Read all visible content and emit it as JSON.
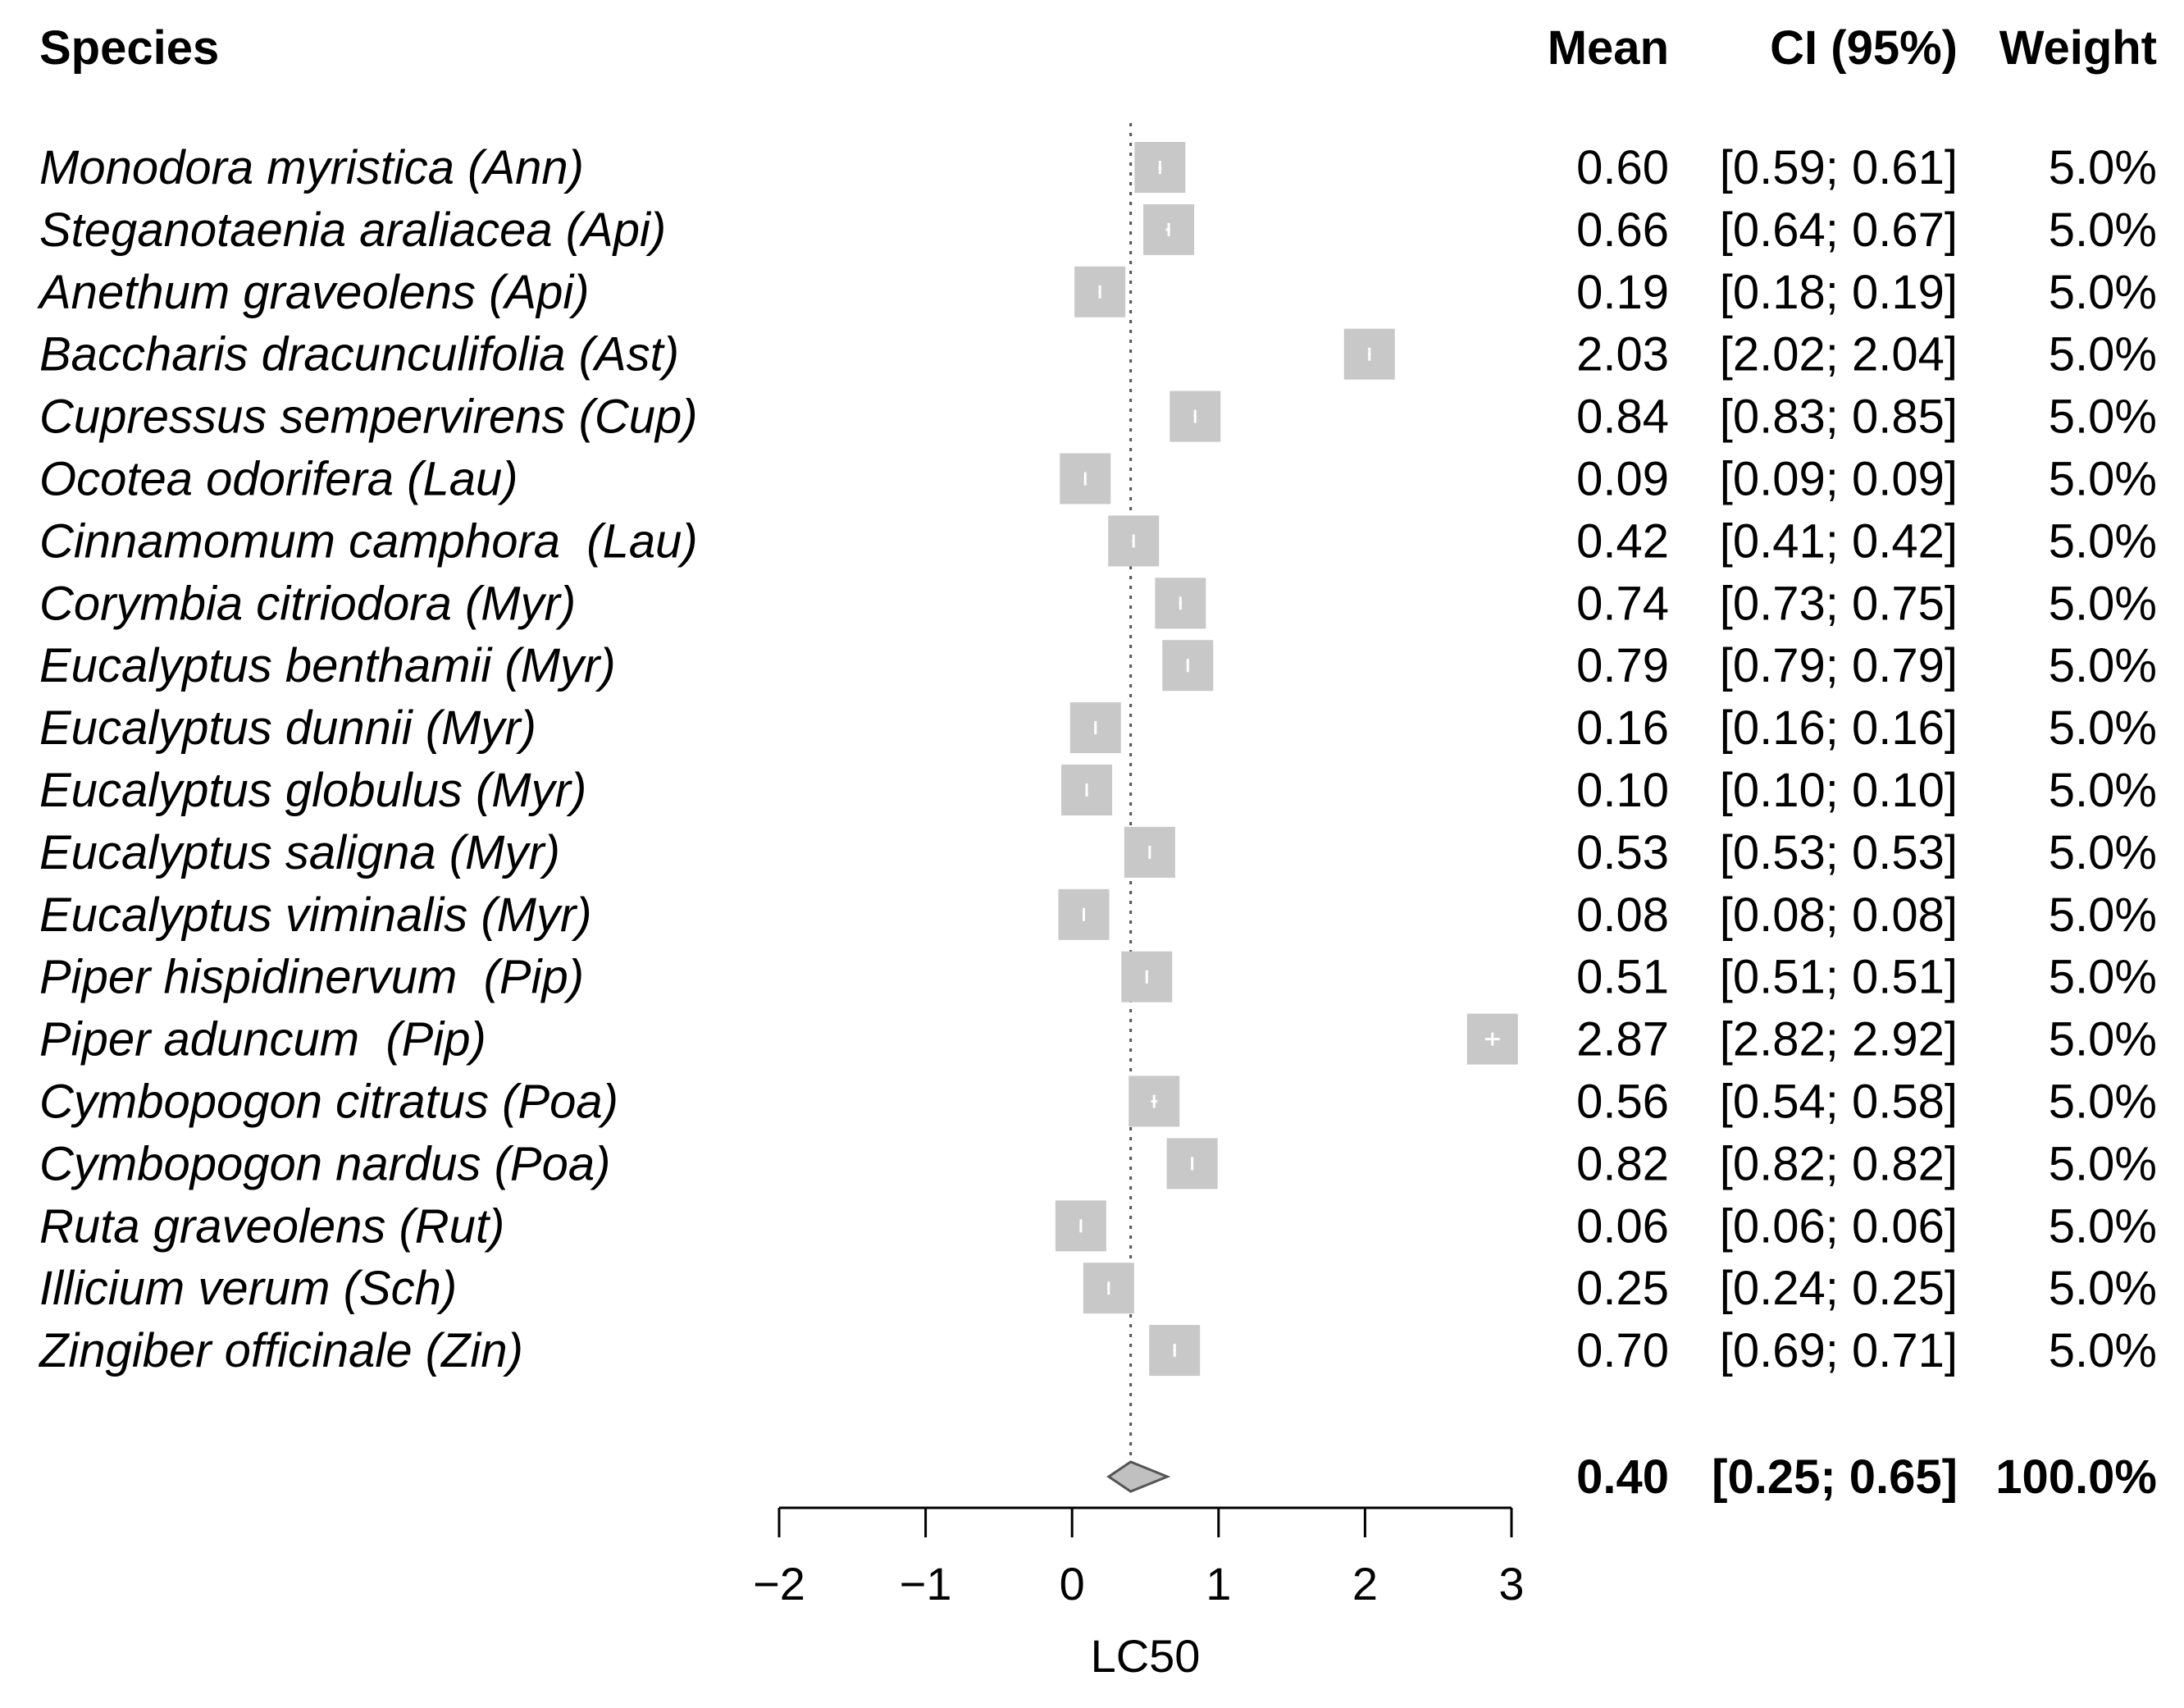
{
  "chart_data": {
    "type": "forest",
    "headers": {
      "species": "Species",
      "mean": "Mean",
      "ci": "CI (95%)",
      "weight": "Weight"
    },
    "rows": [
      {
        "species": "Monodora myristica (Ann)",
        "mean": 0.6,
        "ci_low": 0.59,
        "ci_high": 0.61,
        "mean_text": "0.60",
        "ci_text": "[0.59; 0.61]",
        "weight_text": "5.0%"
      },
      {
        "species": "Steganotaenia araliacea (Api)",
        "mean": 0.66,
        "ci_low": 0.64,
        "ci_high": 0.67,
        "mean_text": "0.66",
        "ci_text": "[0.64; 0.67]",
        "weight_text": "5.0%"
      },
      {
        "species": "Anethum graveolens (Api)",
        "mean": 0.19,
        "ci_low": 0.18,
        "ci_high": 0.19,
        "mean_text": "0.19",
        "ci_text": "[0.18; 0.19]",
        "weight_text": "5.0%"
      },
      {
        "species": "Baccharis dracunculifolia (Ast)",
        "mean": 2.03,
        "ci_low": 2.02,
        "ci_high": 2.04,
        "mean_text": "2.03",
        "ci_text": "[2.02; 2.04]",
        "weight_text": "5.0%"
      },
      {
        "species": "Cupressus sempervirens (Cup)",
        "mean": 0.84,
        "ci_low": 0.83,
        "ci_high": 0.85,
        "mean_text": "0.84",
        "ci_text": "[0.83; 0.85]",
        "weight_text": "5.0%"
      },
      {
        "species": "Ocotea odorifera (Lau)",
        "mean": 0.09,
        "ci_low": 0.09,
        "ci_high": 0.09,
        "mean_text": "0.09",
        "ci_text": "[0.09; 0.09]",
        "weight_text": "5.0%"
      },
      {
        "species": "Cinnamomum camphora  (Lau)",
        "mean": 0.42,
        "ci_low": 0.41,
        "ci_high": 0.42,
        "mean_text": "0.42",
        "ci_text": "[0.41; 0.42]",
        "weight_text": "5.0%"
      },
      {
        "species": "Corymbia citriodora (Myr)",
        "mean": 0.74,
        "ci_low": 0.73,
        "ci_high": 0.75,
        "mean_text": "0.74",
        "ci_text": "[0.73; 0.75]",
        "weight_text": "5.0%"
      },
      {
        "species": "Eucalyptus benthamii (Myr)",
        "mean": 0.79,
        "ci_low": 0.79,
        "ci_high": 0.79,
        "mean_text": "0.79",
        "ci_text": "[0.79; 0.79]",
        "weight_text": "5.0%"
      },
      {
        "species": "Eucalyptus dunnii (Myr)",
        "mean": 0.16,
        "ci_low": 0.16,
        "ci_high": 0.16,
        "mean_text": "0.16",
        "ci_text": "[0.16; 0.16]",
        "weight_text": "5.0%"
      },
      {
        "species": "Eucalyptus globulus (Myr)",
        "mean": 0.1,
        "ci_low": 0.1,
        "ci_high": 0.1,
        "mean_text": "0.10",
        "ci_text": "[0.10; 0.10]",
        "weight_text": "5.0%"
      },
      {
        "species": "Eucalyptus saligna (Myr)",
        "mean": 0.53,
        "ci_low": 0.53,
        "ci_high": 0.53,
        "mean_text": "0.53",
        "ci_text": "[0.53; 0.53]",
        "weight_text": "5.0%"
      },
      {
        "species": "Eucalyptus viminalis (Myr)",
        "mean": 0.08,
        "ci_low": 0.08,
        "ci_high": 0.08,
        "mean_text": "0.08",
        "ci_text": "[0.08; 0.08]",
        "weight_text": "5.0%"
      },
      {
        "species": "Piper hispidinervum  (Pip)",
        "mean": 0.51,
        "ci_low": 0.51,
        "ci_high": 0.51,
        "mean_text": "0.51",
        "ci_text": "[0.51; 0.51]",
        "weight_text": "5.0%"
      },
      {
        "species": "Piper aduncum  (Pip)",
        "mean": 2.87,
        "ci_low": 2.82,
        "ci_high": 2.92,
        "mean_text": "2.87",
        "ci_text": "[2.82; 2.92]",
        "weight_text": "5.0%"
      },
      {
        "species": "Cymbopogon citratus (Poa)",
        "mean": 0.56,
        "ci_low": 0.54,
        "ci_high": 0.58,
        "mean_text": "0.56",
        "ci_text": "[0.54; 0.58]",
        "weight_text": "5.0%"
      },
      {
        "species": "Cymbopogon nardus (Poa)",
        "mean": 0.82,
        "ci_low": 0.82,
        "ci_high": 0.82,
        "mean_text": "0.82",
        "ci_text": "[0.82; 0.82]",
        "weight_text": "5.0%"
      },
      {
        "species": "Ruta graveolens (Rut)",
        "mean": 0.06,
        "ci_low": 0.06,
        "ci_high": 0.06,
        "mean_text": "0.06",
        "ci_text": "[0.06; 0.06]",
        "weight_text": "5.0%"
      },
      {
        "species": "Illicium verum (Sch)",
        "mean": 0.25,
        "ci_low": 0.24,
        "ci_high": 0.25,
        "mean_text": "0.25",
        "ci_text": "[0.24; 0.25]",
        "weight_text": "5.0%"
      },
      {
        "species": "Zingiber officinale (Zin)",
        "mean": 0.7,
        "ci_low": 0.69,
        "ci_high": 0.71,
        "mean_text": "0.70",
        "ci_text": "[0.69; 0.71]",
        "weight_text": "5.0%"
      }
    ],
    "summary": {
      "mean": 0.4,
      "ci_low": 0.25,
      "ci_high": 0.65,
      "mean_text": "0.40",
      "ci_text": "[0.25; 0.65]",
      "weight_text": "100.0%"
    },
    "xlim": [
      -2,
      3
    ],
    "xticks": [
      -2,
      -1,
      0,
      1,
      2,
      3
    ],
    "xtick_labels": [
      "−2",
      "−1",
      "0",
      "1",
      "2",
      "3"
    ],
    "xlabel": "LC50",
    "reference_line": 0.4,
    "colors": {
      "square": "#c8c8c8",
      "diamond": "#c0c0c0",
      "diamond_stroke": "#555555",
      "ci_line": "#ffffff",
      "axis": "#000000",
      "reference": "#555555"
    }
  }
}
